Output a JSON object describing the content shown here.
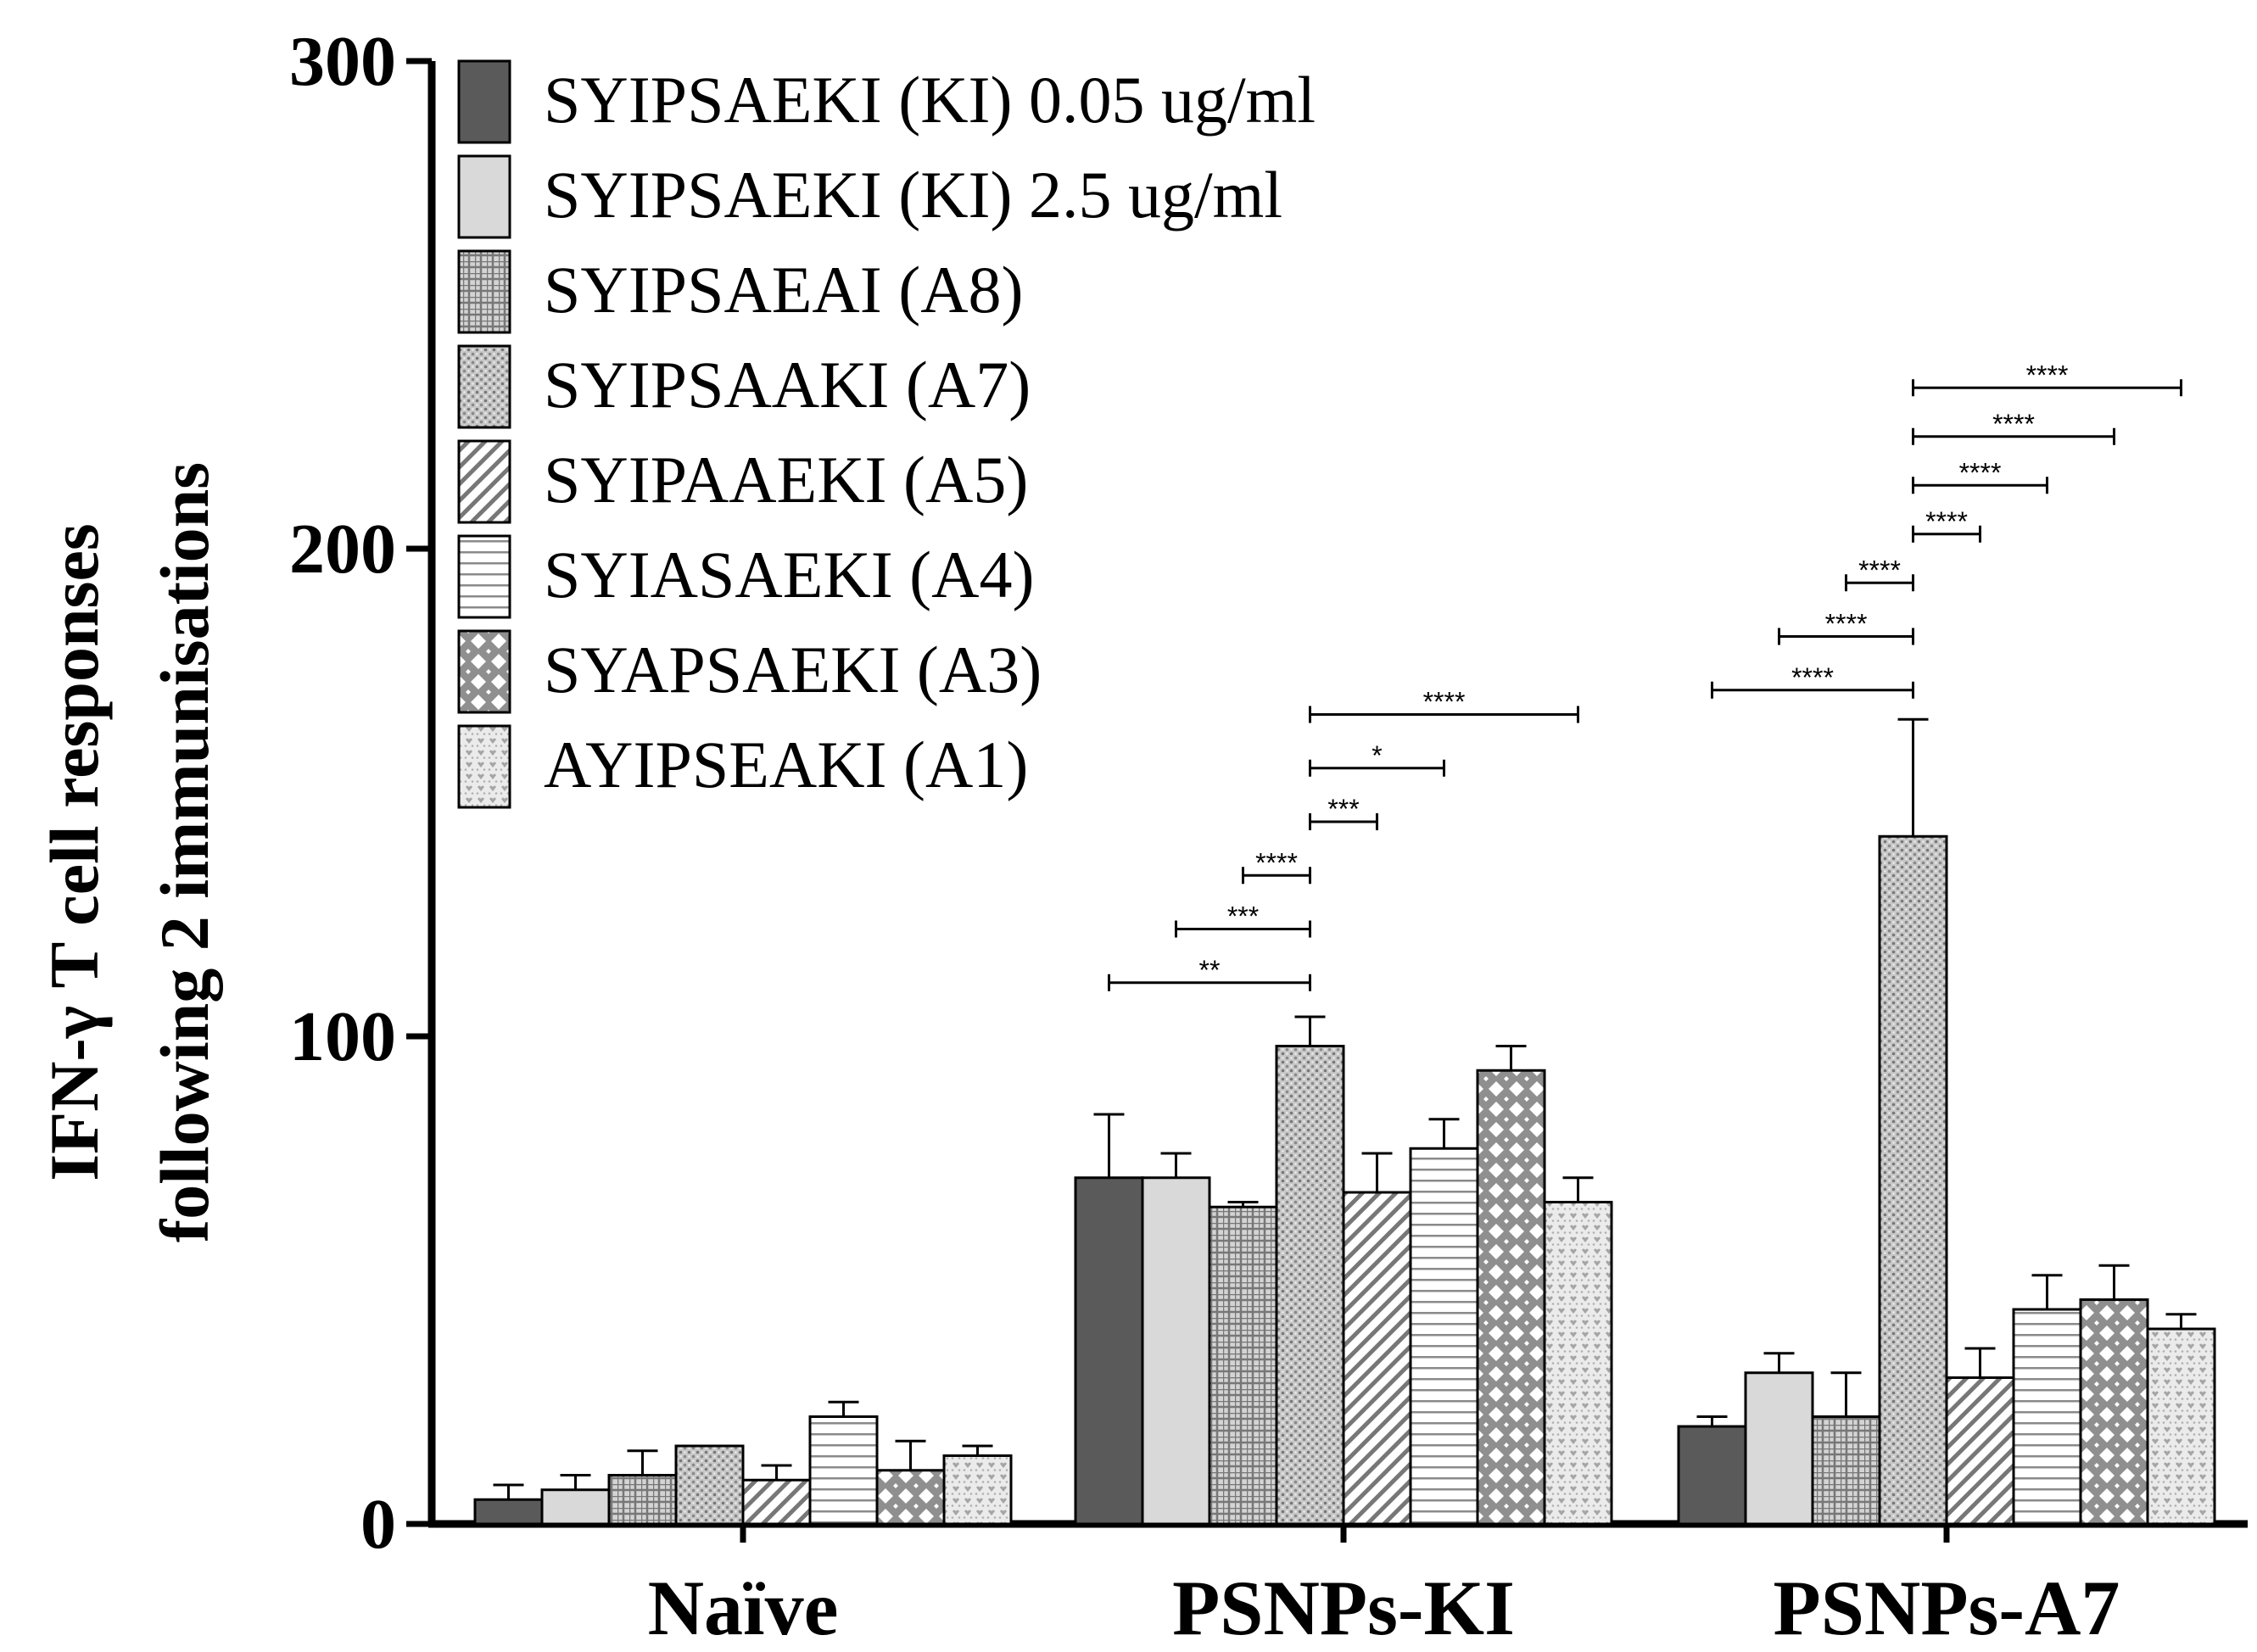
{
  "chart_data": {
    "type": "bar",
    "title": "",
    "ylabel_lines": [
      "IFN-γ T cell responses",
      "following 2 immunisations"
    ],
    "xlabel": "",
    "ylim": [
      0,
      300
    ],
    "yticks": [
      0,
      100,
      200,
      300
    ],
    "categories": [
      "Naïve",
      "PSNPs-KI",
      "PSNPs-A7"
    ],
    "series": [
      {
        "name": "SYIPSAEKI (KI) 0.05 ug/ml",
        "pattern": "solid-dark",
        "values": [
          5,
          71,
          20
        ],
        "errors": [
          3,
          13,
          2
        ]
      },
      {
        "name": "SYIPSAEKI (KI) 2.5 ug/ml",
        "pattern": "solid-light",
        "values": [
          7,
          71,
          31
        ],
        "errors": [
          3,
          5,
          4
        ]
      },
      {
        "name": "SYIPSAEAI (A8)",
        "pattern": "grid",
        "values": [
          10,
          65,
          22
        ],
        "errors": [
          5,
          1,
          9
        ]
      },
      {
        "name": "SYIPSAAKI (A7)",
        "pattern": "dots",
        "values": [
          16,
          98,
          141
        ],
        "errors": [
          0,
          6,
          24
        ]
      },
      {
        "name": "SYIPAAEKI (A5)",
        "pattern": "diagonal",
        "values": [
          9,
          68,
          30
        ],
        "errors": [
          3,
          8,
          6
        ]
      },
      {
        "name": "SYIASAEKI (A4)",
        "pattern": "horizontal",
        "values": [
          22,
          77,
          44
        ],
        "errors": [
          3,
          6,
          7
        ]
      },
      {
        "name": "SYAPSAEKI (A3)",
        "pattern": "diamond",
        "values": [
          11,
          93,
          46
        ],
        "errors": [
          6,
          5,
          7
        ]
      },
      {
        "name": "AYIPSEAKI (A1)",
        "pattern": "hearts",
        "values": [
          14,
          66,
          40
        ],
        "errors": [
          2,
          5,
          3
        ]
      }
    ],
    "significance": [
      {
        "group": 1,
        "from_series": 3,
        "to_series": 0,
        "y": 111,
        "label": "**"
      },
      {
        "group": 1,
        "from_series": 3,
        "to_series": 1,
        "y": 122,
        "label": "***"
      },
      {
        "group": 1,
        "from_series": 3,
        "to_series": 2,
        "y": 133,
        "label": "****"
      },
      {
        "group": 1,
        "from_series": 3,
        "to_series": 4,
        "y": 144,
        "label": "***"
      },
      {
        "group": 1,
        "from_series": 3,
        "to_series": 5,
        "y": 155,
        "label": "*"
      },
      {
        "group": 1,
        "from_series": 3,
        "to_series": 7,
        "y": 166,
        "label": "****"
      },
      {
        "group": 2,
        "from_series": 3,
        "to_series": 0,
        "y": 171,
        "label": "****"
      },
      {
        "group": 2,
        "from_series": 3,
        "to_series": 1,
        "y": 182,
        "label": "****"
      },
      {
        "group": 2,
        "from_series": 3,
        "to_series": 2,
        "y": 193,
        "label": "****"
      },
      {
        "group": 2,
        "from_series": 3,
        "to_series": 4,
        "y": 203,
        "label": "****"
      },
      {
        "group": 2,
        "from_series": 3,
        "to_series": 5,
        "y": 213,
        "label": "****"
      },
      {
        "group": 2,
        "from_series": 3,
        "to_series": 6,
        "y": 223,
        "label": "****"
      },
      {
        "group": 2,
        "from_series": 3,
        "to_series": 7,
        "y": 233,
        "label": "****"
      }
    ],
    "legend_position": "top-left",
    "colors": {
      "dark": "#5a5a5a",
      "light": "#d9d9d9",
      "pattern": "#8a8a8a",
      "axis": "#000000"
    }
  }
}
